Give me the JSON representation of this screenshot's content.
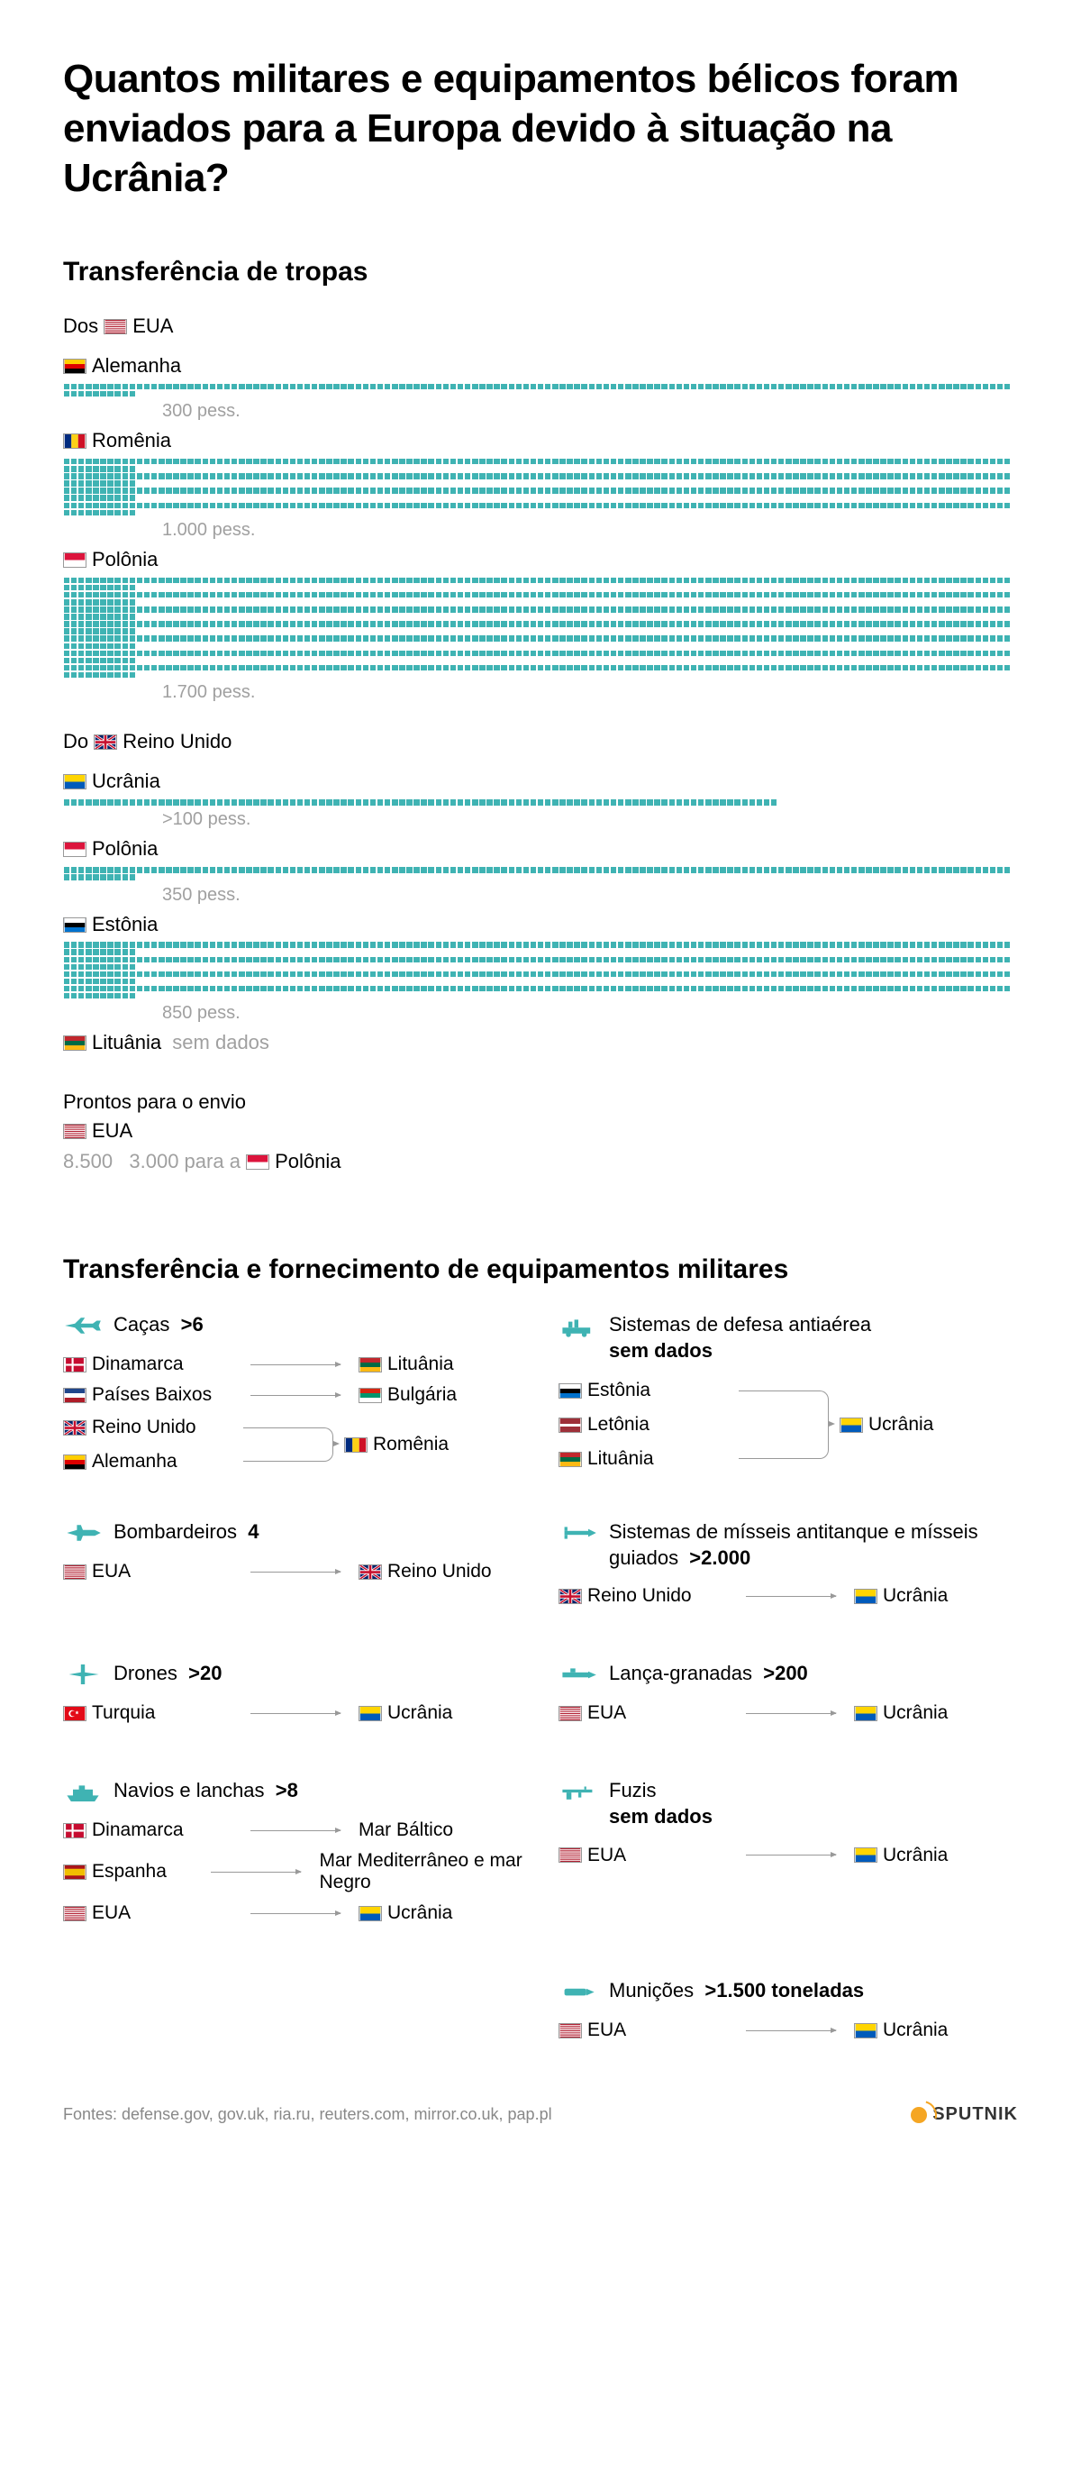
{
  "title": "Quantos militares e equipamentos bélicos foram enviados para a Europa devido à situação na Ucrânia?",
  "troops_title": "Transferência de tropas",
  "from_word": "Dos",
  "from_word2": "Do",
  "sources": [
    {
      "label": "EUA",
      "flag": "us",
      "prefix": "Dos",
      "dest": [
        {
          "country": "Alemanha",
          "flag": "de",
          "value_label": "300 pess.",
          "value": 300,
          "rows": 1,
          "cols": 140,
          "style": "dash"
        },
        {
          "country": "Romênia",
          "flag": "ro",
          "value_label": "1.000 pess.",
          "value": 1000,
          "rows": 4,
          "cols": 140,
          "style": "full"
        },
        {
          "country": "Polônia",
          "flag": "pl",
          "value_label": "1.700 pess.",
          "value": 1700,
          "rows": 7,
          "cols": 140,
          "style": "full"
        }
      ]
    },
    {
      "label": "Reino Unido",
      "flag": "uk",
      "prefix": "Do",
      "dest": [
        {
          "country": "Ucrânia",
          "flag": "ua",
          "value_label": ">100 pess.",
          "value": 100,
          "rows": 1,
          "cols": 98,
          "style": "dash"
        },
        {
          "country": "Polônia",
          "flag": "pl",
          "value_label": "350 pess.",
          "value": 350,
          "rows": 1,
          "cols": 140,
          "style": "dash",
          "extra_partial": 50
        },
        {
          "country": "Estônia",
          "flag": "ee",
          "value_label": "850 pess.",
          "value": 850,
          "rows": 4,
          "cols": 140,
          "style": "full"
        },
        {
          "country": "Lituânia",
          "flag": "lt",
          "nodata": "sem dados"
        }
      ]
    }
  ],
  "ready": {
    "title": "Prontos para o envio",
    "country": "EUA",
    "flag": "us",
    "lines": [
      {
        "text": "8.500"
      },
      {
        "text": "3.000 para a",
        "flag": "pl",
        "suffix": "Polônia"
      }
    ]
  },
  "equip_title": "Transferência e fornecimento de equipamentos militares",
  "equipment": [
    {
      "icon": "jet",
      "name": "Caças",
      "count": ">6",
      "transfers": [
        {
          "from": "Dinamarca",
          "from_flag": "dk",
          "to": "Lituânia",
          "to_flag": "lt"
        },
        {
          "from": "Países Baixos",
          "from_flag": "nl",
          "to": "Bulgária",
          "to_flag": "bg"
        }
      ],
      "bracket": {
        "from": [
          {
            "c": "Reino Unido",
            "f": "uk"
          },
          {
            "c": "Alemanha",
            "f": "de"
          }
        ],
        "to": {
          "c": "Romênia",
          "f": "ro"
        }
      }
    },
    {
      "icon": "aa",
      "name": "Sistemas de defesa antiaérea",
      "count_label": "sem dados",
      "bracket": {
        "from": [
          {
            "c": "Estônia",
            "f": "ee"
          },
          {
            "c": "Letônia",
            "f": "lv"
          },
          {
            "c": "Lituânia",
            "f": "lt"
          }
        ],
        "to": {
          "c": "Ucrânia",
          "f": "ua"
        }
      }
    },
    {
      "icon": "bomber",
      "name": "Bombardeiros",
      "count": "4",
      "transfers": [
        {
          "from": "EUA",
          "from_flag": "us",
          "to": "Reino Unido",
          "to_flag": "uk"
        }
      ]
    },
    {
      "icon": "missile",
      "name": "Sistemas de mísseis antitanque e mísseis guiados",
      "count": ">2.000",
      "transfers": [
        {
          "from": "Reino Unido",
          "from_flag": "uk",
          "to": "Ucrânia",
          "to_flag": "ua"
        }
      ]
    },
    {
      "icon": "drone",
      "name": "Drones",
      "count": ">20",
      "transfers": [
        {
          "from": "Turquia",
          "from_flag": "tr",
          "to": "Ucrânia",
          "to_flag": "ua"
        }
      ]
    },
    {
      "icon": "grenade",
      "name": "Lança-granadas",
      "count": ">200",
      "transfers": [
        {
          "from": "EUA",
          "from_flag": "us",
          "to": "Ucrânia",
          "to_flag": "ua"
        }
      ]
    },
    {
      "icon": "ship",
      "name": "Navios e lanchas",
      "count": ">8",
      "transfers": [
        {
          "from": "Dinamarca",
          "from_flag": "dk",
          "to": "Mar Báltico"
        },
        {
          "from": "Espanha",
          "from_flag": "es",
          "to": "Mar Mediterrâneo e mar Negro"
        },
        {
          "from": "EUA",
          "from_flag": "us",
          "to": "Ucrânia",
          "to_flag": "ua"
        }
      ]
    },
    {
      "icon": "rifle",
      "name": "Fuzis",
      "count_label": "sem dados",
      "transfers": [
        {
          "from": "EUA",
          "from_flag": "us",
          "to": "Ucrânia",
          "to_flag": "ua"
        }
      ]
    },
    null,
    {
      "icon": "ammo",
      "name": "Munições",
      "count": ">1.500 toneladas",
      "transfers": [
        {
          "from": "EUA",
          "from_flag": "us",
          "to": "Ucrânia",
          "to_flag": "ua"
        }
      ]
    }
  ],
  "footer_sources": "Fontes: defense.gov, gov.uk, ria.ru, reuters.com, mirror.co.uk, pap.pl",
  "brand": "SPUTNIK",
  "colors": {
    "accent": "#3fb3b3",
    "muted": "#a0a0a0",
    "arrow": "#999"
  },
  "flags": {
    "us": [
      [
        "#b22234",
        1
      ],
      [
        "#fff",
        0.92
      ],
      [
        "#b22234",
        0.85
      ],
      [
        "#fff",
        0.77
      ],
      [
        "#b22234",
        0.69
      ],
      [
        "#fff",
        0.62
      ],
      [
        "#b22234",
        0.54
      ],
      [
        "#fff",
        0.46
      ],
      [
        "#b22234",
        0.38
      ],
      [
        "#fff",
        0.31
      ],
      [
        "#b22234",
        0.23
      ],
      [
        "#fff",
        0.15
      ],
      [
        "#b22234",
        0.08
      ]
    ],
    "de": [
      [
        "#000",
        1
      ],
      [
        "#dd0000",
        0.667
      ],
      [
        "#ffce00",
        0.333
      ]
    ],
    "ro": "v:#002b7f,#fcd116,#ce1126",
    "pl": [
      [
        "#fff",
        1
      ],
      [
        "#dc143c",
        0.5
      ]
    ],
    "uk": "uk",
    "ua": [
      [
        "#005bbb",
        1
      ],
      [
        "#ffd500",
        0.5
      ]
    ],
    "ee": [
      [
        "#0072ce",
        1
      ],
      [
        "#000",
        0.667
      ],
      [
        "#fff",
        0.333
      ]
    ],
    "lt": [
      [
        "#fdb913",
        1
      ],
      [
        "#006a44",
        0.667
      ],
      [
        "#c1272d",
        0.333
      ]
    ],
    "dk": "dk",
    "nl": [
      [
        "#ae1c28",
        1
      ],
      [
        "#fff",
        0.667
      ],
      [
        "#21468b",
        0.333
      ]
    ],
    "bg": [
      [
        "#fff",
        1
      ],
      [
        "#00966e",
        0.667
      ],
      [
        "#d62612",
        0.333
      ]
    ],
    "lv": [
      [
        "#9e3039",
        1
      ],
      [
        "#fff",
        0.6
      ],
      [
        "#9e3039",
        0.4
      ]
    ],
    "tr": "tr",
    "es": [
      [
        "#aa151b",
        1
      ],
      [
        "#f1bf00",
        0.75
      ],
      [
        "#aa151b",
        0.25
      ]
    ]
  }
}
